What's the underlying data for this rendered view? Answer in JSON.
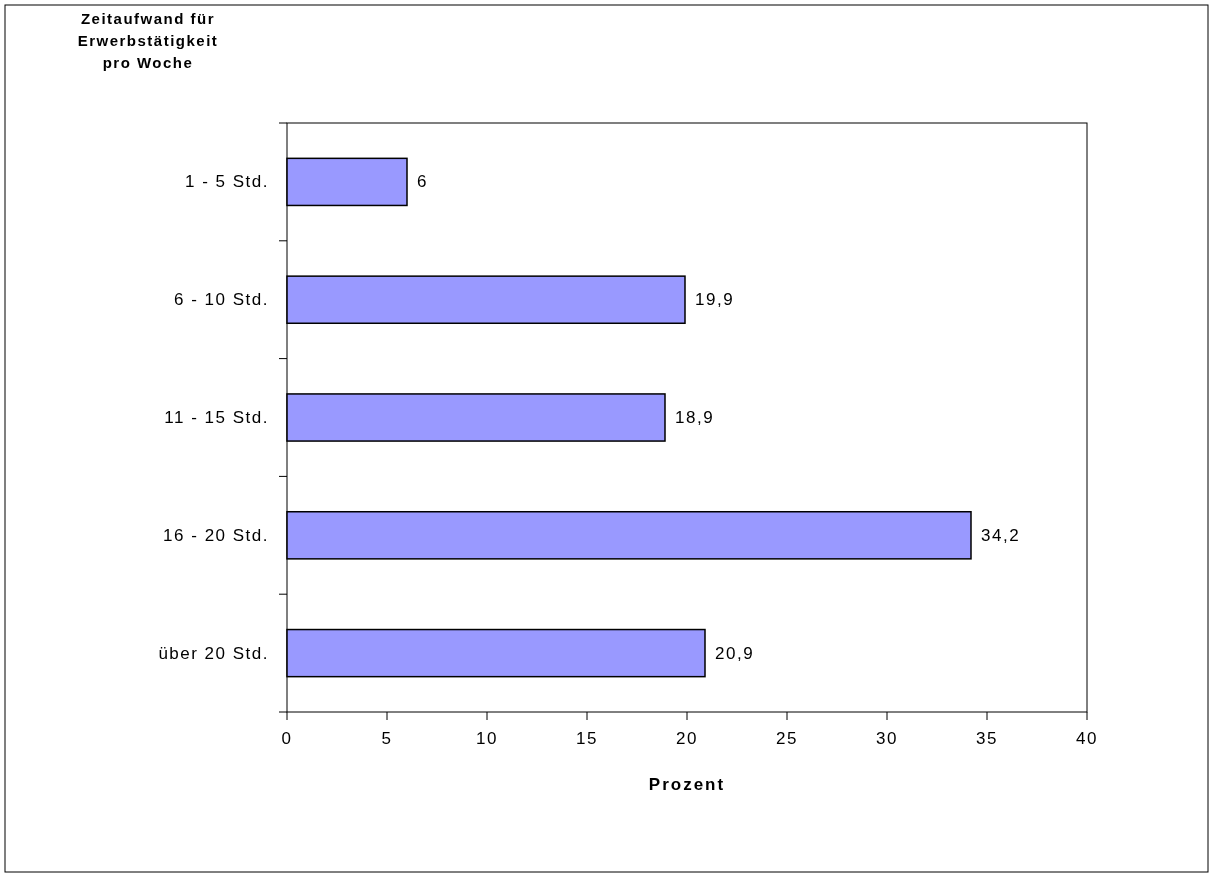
{
  "chart_data": {
    "type": "bar",
    "orientation": "horizontal",
    "ylabel": "Zeitaufwand für Erwerbstätigkeit pro Woche",
    "xlabel": "Prozent",
    "categories": [
      "1 - 5 Std.",
      "6 - 10 Std.",
      "11 - 15 Std.",
      "16 - 20 Std.",
      "über 20 Std."
    ],
    "values": [
      6,
      19.9,
      18.9,
      34.2,
      20.9
    ],
    "value_labels": [
      "6",
      "19,9",
      "18,9",
      "34,2",
      "20,9"
    ],
    "color": "#9999ff",
    "xlim": [
      0,
      40
    ],
    "xticks": [
      0,
      5,
      10,
      15,
      20,
      25,
      30,
      35,
      40
    ],
    "grid": false
  }
}
